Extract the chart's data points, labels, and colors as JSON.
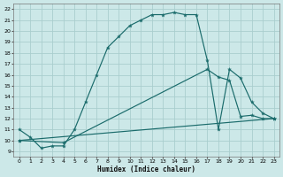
{
  "xlabel": "Humidex (Indice chaleur)",
  "bg_color": "#cce8e8",
  "grid_color": "#aacece",
  "line_color": "#1a6b6b",
  "xlim": [
    -0.5,
    23.5
  ],
  "ylim": [
    8.5,
    22.5
  ],
  "xticks": [
    0,
    1,
    2,
    3,
    4,
    5,
    6,
    7,
    8,
    9,
    10,
    11,
    12,
    13,
    14,
    15,
    16,
    17,
    18,
    19,
    20,
    21,
    22,
    23
  ],
  "yticks": [
    9,
    10,
    11,
    12,
    13,
    14,
    15,
    16,
    17,
    18,
    19,
    20,
    21,
    22
  ],
  "curve1_x": [
    0,
    1,
    2,
    3,
    4,
    5,
    6,
    7,
    8,
    9,
    10,
    11,
    12,
    13,
    14,
    15,
    16,
    17,
    18,
    19,
    20,
    21,
    22,
    23
  ],
  "curve1_y": [
    11,
    10.3,
    9.3,
    9.5,
    9.5,
    11.0,
    13.5,
    16.0,
    18.5,
    19.5,
    20.5,
    21.0,
    21.5,
    21.5,
    21.7,
    21.5,
    21.5,
    17.3,
    11.0,
    16.5,
    15.7,
    13.5,
    12.5,
    12.0
  ],
  "curve2_x": [
    0,
    4,
    17,
    18,
    19,
    20,
    21,
    22,
    23
  ],
  "curve2_y": [
    10.0,
    9.8,
    16.5,
    15.8,
    15.5,
    12.2,
    12.3,
    12.0,
    12.0
  ],
  "curve3_x": [
    0,
    23
  ],
  "curve3_y": [
    10.0,
    12.0
  ],
  "markersize": 3.0,
  "linewidth": 0.85
}
